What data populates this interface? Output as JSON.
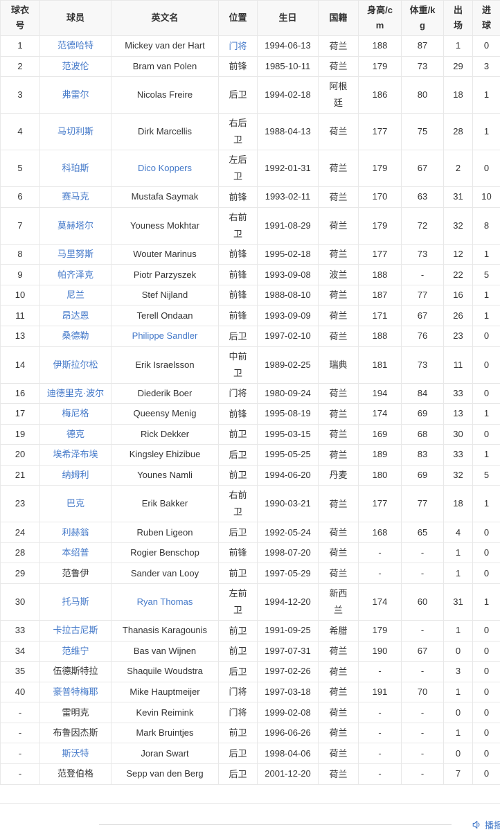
{
  "table": {
    "columns": [
      {
        "label": "球衣\n号"
      },
      {
        "label": "球员"
      },
      {
        "label": "英文名"
      },
      {
        "label": "位置"
      },
      {
        "label": "生日"
      },
      {
        "label": "国籍"
      },
      {
        "label": "身高/c\nm"
      },
      {
        "label": "体重/k\ng"
      },
      {
        "label": "出\n场"
      },
      {
        "label": "进\n球"
      }
    ],
    "rows": [
      {
        "cells": [
          "1",
          "范德哈特",
          "Mickey van der Hart",
          "门将",
          "1994-06-13",
          "荷兰",
          "188",
          "87",
          "1",
          "0"
        ],
        "links": [
          1,
          3
        ]
      },
      {
        "cells": [
          "2",
          "范波伦",
          "Bram van Polen",
          "前锋",
          "1985-10-11",
          "荷兰",
          "179",
          "73",
          "29",
          "3"
        ],
        "links": [
          1
        ]
      },
      {
        "cells": [
          "3",
          "弗雷尔",
          "Nicolas Freire",
          "后卫",
          "1994-02-18",
          "阿根廷",
          "186",
          "80",
          "18",
          "1"
        ],
        "links": [
          1
        ]
      },
      {
        "cells": [
          "4",
          "马切利斯",
          "Dirk Marcellis",
          "右后卫",
          "1988-04-13",
          "荷兰",
          "177",
          "75",
          "28",
          "1"
        ],
        "links": [
          1
        ]
      },
      {
        "cells": [
          "5",
          "科珀斯",
          "Dico Koppers",
          "左后卫",
          "1992-01-31",
          "荷兰",
          "179",
          "67",
          "2",
          "0"
        ],
        "links": [
          1,
          2
        ]
      },
      {
        "cells": [
          "6",
          "赛马克",
          "Mustafa Saymak",
          "前锋",
          "1993-02-11",
          "荷兰",
          "170",
          "63",
          "31",
          "10"
        ],
        "links": [
          1
        ]
      },
      {
        "cells": [
          "7",
          "莫赫塔尔",
          "Youness Mokhtar",
          "右前卫",
          "1991-08-29",
          "荷兰",
          "179",
          "72",
          "32",
          "8"
        ],
        "links": [
          1
        ]
      },
      {
        "cells": [
          "8",
          "马里努斯",
          "Wouter Marinus",
          "前锋",
          "1995-02-18",
          "荷兰",
          "177",
          "73",
          "12",
          "1"
        ],
        "links": [
          1
        ]
      },
      {
        "cells": [
          "9",
          "帕齐泽克",
          "Piotr Parzyszek",
          "前锋",
          "1993-09-08",
          "波兰",
          "188",
          "-",
          "22",
          "5"
        ],
        "links": [
          1
        ]
      },
      {
        "cells": [
          "10",
          "尼兰",
          "Stef Nijland",
          "前锋",
          "1988-08-10",
          "荷兰",
          "187",
          "77",
          "16",
          "1"
        ],
        "links": [
          1
        ]
      },
      {
        "cells": [
          "11",
          "昂达恩",
          "Terell Ondaan",
          "前锋",
          "1993-09-09",
          "荷兰",
          "171",
          "67",
          "26",
          "1"
        ],
        "links": [
          1
        ]
      },
      {
        "cells": [
          "13",
          "桑德勒",
          "Philippe Sandler",
          "后卫",
          "1997-02-10",
          "荷兰",
          "188",
          "76",
          "23",
          "0"
        ],
        "links": [
          1,
          2
        ]
      },
      {
        "cells": [
          "14",
          "伊斯拉尔松",
          "Erik Israelsson",
          "中前卫",
          "1989-02-25",
          "瑞典",
          "181",
          "73",
          "11",
          "0"
        ],
        "links": [
          1
        ]
      },
      {
        "cells": [
          "16",
          "迪德里克·波尔",
          "Diederik Boer",
          "门将",
          "1980-09-24",
          "荷兰",
          "194",
          "84",
          "33",
          "0"
        ],
        "links": [
          1
        ]
      },
      {
        "cells": [
          "17",
          "梅尼格",
          "Queensy Menig",
          "前锋",
          "1995-08-19",
          "荷兰",
          "174",
          "69",
          "13",
          "1"
        ],
        "links": [
          1
        ]
      },
      {
        "cells": [
          "19",
          "德克",
          "Rick Dekker",
          "前卫",
          "1995-03-15",
          "荷兰",
          "169",
          "68",
          "30",
          "0"
        ],
        "links": [
          1
        ]
      },
      {
        "cells": [
          "20",
          "埃希泽布埃",
          "Kingsley Ehizibue",
          "后卫",
          "1995-05-25",
          "荷兰",
          "189",
          "83",
          "33",
          "1"
        ],
        "links": [
          1
        ]
      },
      {
        "cells": [
          "21",
          "纳姆利",
          "Younes Namli",
          "前卫",
          "1994-06-20",
          "丹麦",
          "180",
          "69",
          "32",
          "5"
        ],
        "links": [
          1
        ]
      },
      {
        "cells": [
          "23",
          "巴克",
          "Erik Bakker",
          "右前卫",
          "1990-03-21",
          "荷兰",
          "177",
          "77",
          "18",
          "1"
        ],
        "links": [
          1
        ]
      },
      {
        "cells": [
          "24",
          "利赫翁",
          "Ruben Ligeon",
          "后卫",
          "1992-05-24",
          "荷兰",
          "168",
          "65",
          "4",
          "0"
        ],
        "links": [
          1
        ]
      },
      {
        "cells": [
          "28",
          "本绍普",
          "Rogier Benschop",
          "前锋",
          "1998-07-20",
          "荷兰",
          "-",
          "-",
          "1",
          "0"
        ],
        "links": [
          1
        ]
      },
      {
        "cells": [
          "29",
          "范鲁伊",
          "Sander van Looy",
          "前卫",
          "1997-05-29",
          "荷兰",
          "-",
          "-",
          "1",
          "0"
        ],
        "links": []
      },
      {
        "cells": [
          "30",
          "托马斯",
          "Ryan Thomas",
          "左前卫",
          "1994-12-20",
          "新西兰",
          "174",
          "60",
          "31",
          "1"
        ],
        "links": [
          1,
          2
        ]
      },
      {
        "cells": [
          "33",
          "卡拉古尼斯",
          "Thanasis Karagounis",
          "前卫",
          "1991-09-25",
          "希腊",
          "179",
          "-",
          "1",
          "0"
        ],
        "links": [
          1
        ]
      },
      {
        "cells": [
          "34",
          "范维宁",
          "Bas van Wijnen",
          "前卫",
          "1997-07-31",
          "荷兰",
          "190",
          "67",
          "0",
          "0"
        ],
        "links": [
          1
        ]
      },
      {
        "cells": [
          "35",
          "伍德斯特拉",
          "Shaquile Woudstra",
          "后卫",
          "1997-02-26",
          "荷兰",
          "-",
          "-",
          "3",
          "0"
        ],
        "links": []
      },
      {
        "cells": [
          "40",
          "豪普特梅耶",
          "Mike Hauptmeijer",
          "门将",
          "1997-03-18",
          "荷兰",
          "191",
          "70",
          "1",
          "0"
        ],
        "links": [
          1
        ]
      },
      {
        "cells": [
          "-",
          "雷明克",
          "Kevin Reimink",
          "门将",
          "1999-02-08",
          "荷兰",
          "-",
          "-",
          "0",
          "0"
        ],
        "links": []
      },
      {
        "cells": [
          "-",
          "布鲁因杰斯",
          "Mark Bruintjes",
          "前卫",
          "1996-06-26",
          "荷兰",
          "-",
          "-",
          "1",
          "0"
        ],
        "links": []
      },
      {
        "cells": [
          "-",
          "斯沃特",
          "Joran Swart",
          "后卫",
          "1998-04-06",
          "荷兰",
          "-",
          "-",
          "0",
          "0"
        ],
        "links": [
          1
        ]
      },
      {
        "cells": [
          "-",
          "范登伯格",
          "Sepp van den Berg",
          "后卫",
          "2001-12-20",
          "荷兰",
          "-",
          "-",
          "7",
          "0"
        ],
        "links": []
      }
    ]
  },
  "footer": {
    "tts_label": "播报",
    "tts_icon": "speaker-icon"
  },
  "colors": {
    "link": "#4479c9",
    "text": "#333333",
    "border": "#e8e8e8",
    "header_bg": "#f8f8f8",
    "divider": "#d9d9d9"
  }
}
